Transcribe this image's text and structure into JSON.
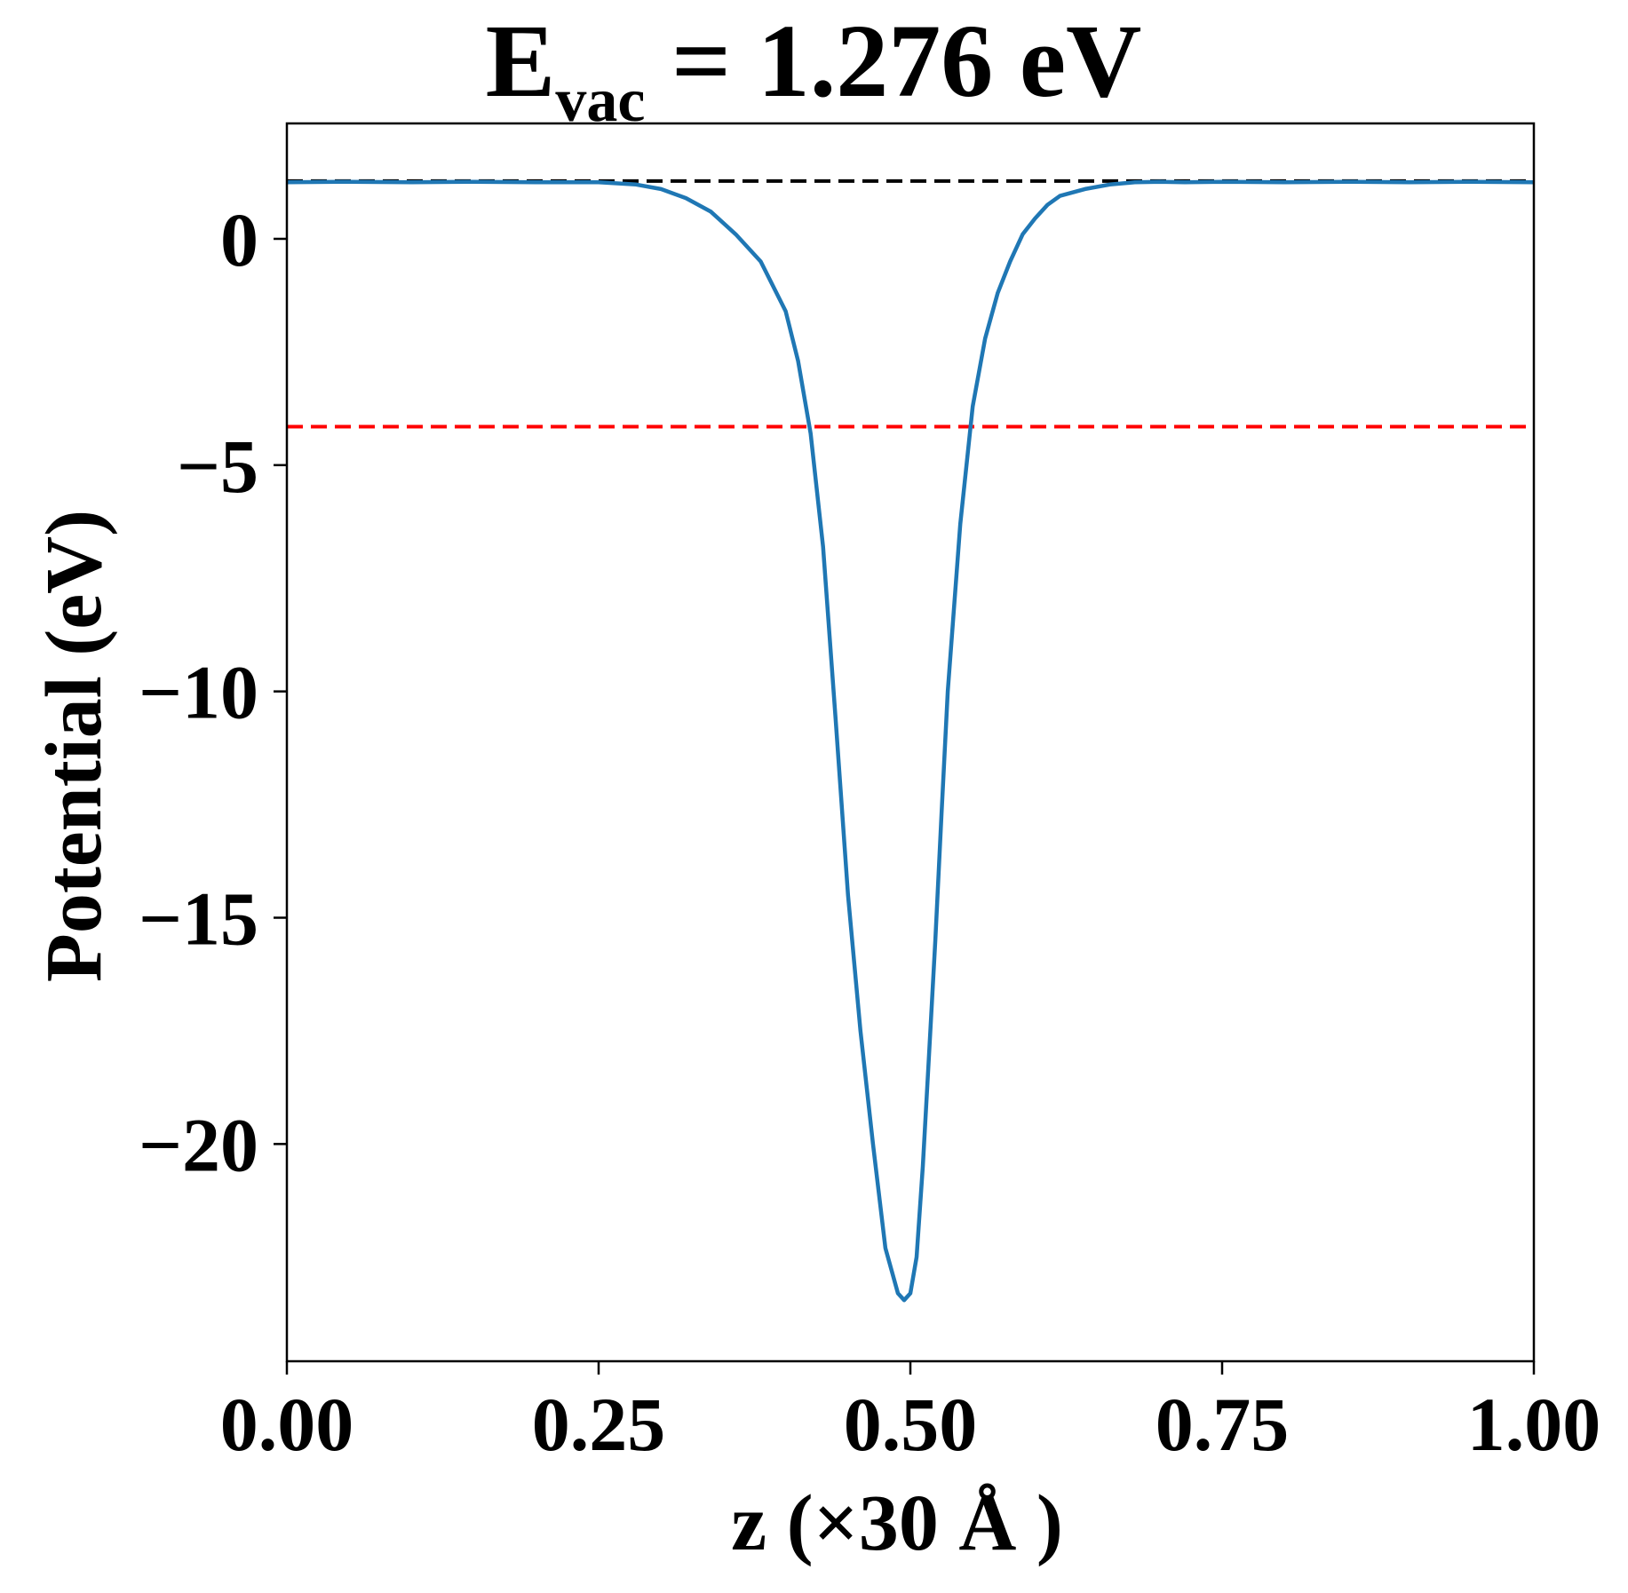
{
  "chart_data": {
    "type": "line",
    "title": {
      "main": "E",
      "subscript": "vac",
      "rest": " = 1.276 eV"
    },
    "xlabel": "z (×30 Å )",
    "ylabel": "Potential (eV)",
    "xlim": [
      0.0,
      1.0
    ],
    "ylim": [
      -24.8,
      2.55
    ],
    "xticks": [
      0.0,
      0.25,
      0.5,
      0.75,
      1.0
    ],
    "xtick_labels": [
      "0.00",
      "0.25",
      "0.50",
      "0.75",
      "1.00"
    ],
    "yticks": [
      0,
      -5,
      -10,
      -15,
      -20
    ],
    "ytick_labels": [
      "0",
      "−5",
      "−10",
      "−15",
      "−20"
    ],
    "grid": false,
    "reference_lines": [
      {
        "y": 1.276,
        "color": "#000000",
        "style": "dashed"
      },
      {
        "y": -4.15,
        "color": "#ff0000",
        "style": "dashed"
      }
    ],
    "series": [
      {
        "color": "#1f77b4",
        "x": [
          0.0,
          0.05,
          0.1,
          0.15,
          0.2,
          0.25,
          0.28,
          0.3,
          0.32,
          0.34,
          0.36,
          0.38,
          0.4,
          0.41,
          0.42,
          0.43,
          0.44,
          0.45,
          0.46,
          0.47,
          0.48,
          0.49,
          0.495,
          0.5,
          0.505,
          0.51,
          0.515,
          0.52,
          0.525,
          0.53,
          0.54,
          0.55,
          0.56,
          0.57,
          0.58,
          0.59,
          0.6,
          0.61,
          0.62,
          0.64,
          0.66,
          0.68,
          0.7,
          0.72,
          0.75,
          0.8,
          0.85,
          0.9,
          0.95,
          1.0
        ],
        "y": [
          1.25,
          1.26,
          1.25,
          1.26,
          1.25,
          1.25,
          1.2,
          1.1,
          0.9,
          0.6,
          0.1,
          -0.5,
          -1.6,
          -2.7,
          -4.3,
          -6.8,
          -10.6,
          -14.5,
          -17.5,
          -20.0,
          -22.3,
          -23.3,
          -23.45,
          -23.3,
          -22.5,
          -20.5,
          -18.0,
          -15.5,
          -12.7,
          -10.0,
          -6.3,
          -3.7,
          -2.2,
          -1.2,
          -0.5,
          0.1,
          0.45,
          0.75,
          0.95,
          1.1,
          1.2,
          1.25,
          1.26,
          1.25,
          1.26,
          1.25,
          1.26,
          1.25,
          1.26,
          1.25
        ]
      }
    ]
  }
}
